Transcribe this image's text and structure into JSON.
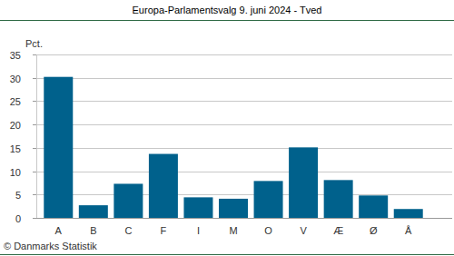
{
  "chart_data": {
    "type": "bar",
    "title": "Europa-Parlamentsvalg 9. juni 2024 - Tved",
    "y_label": "Pct.",
    "source": "© Danmarks Statistik",
    "categories": [
      "A",
      "B",
      "C",
      "F",
      "I",
      "M",
      "O",
      "V",
      "Æ",
      "Ø",
      "Å"
    ],
    "values": [
      30.2,
      2.7,
      7.3,
      13.7,
      4.4,
      4.1,
      7.9,
      15.1,
      8.1,
      4.8,
      1.9
    ],
    "color": "#00618c",
    "ylim": [
      0,
      35
    ],
    "yticks": [
      0,
      5,
      10,
      15,
      20,
      25,
      30,
      35
    ],
    "grid": true
  }
}
